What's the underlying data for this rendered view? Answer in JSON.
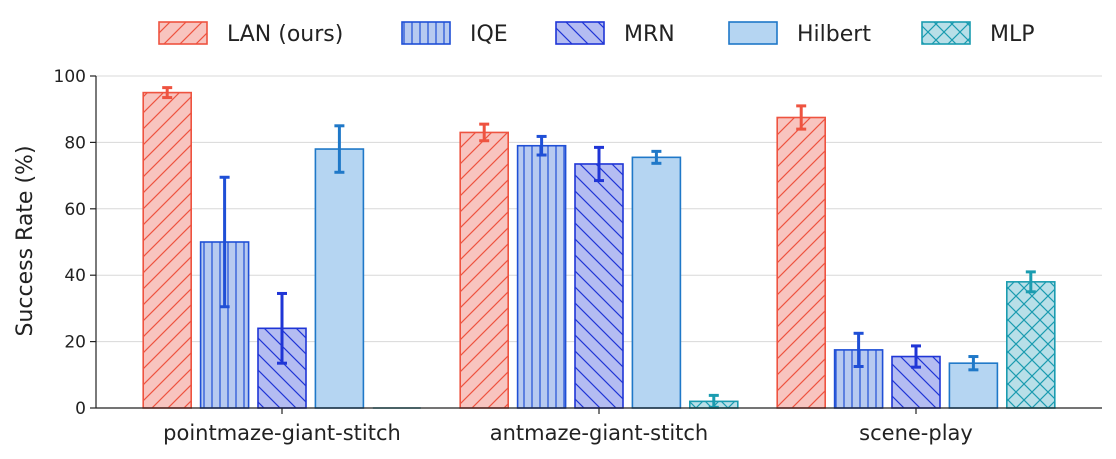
{
  "chart_data": {
    "type": "bar",
    "ylabel": "Success Rate (%)",
    "ylim": [
      0,
      100
    ],
    "yticks": [
      0,
      20,
      40,
      60,
      80,
      100
    ],
    "grid": "horizontal",
    "legend_position": "top",
    "categories": [
      "pointmaze-giant-stitch",
      "antmaze-giant-stitch",
      "scene-play"
    ],
    "series": [
      {
        "name": "LAN (ours)",
        "values": [
          95,
          83,
          87.5
        ],
        "errors": [
          1.5,
          2.5,
          3.5
        ],
        "fill": "#f8c4bf",
        "stroke": "#ee5340",
        "hatch": "diag-up"
      },
      {
        "name": "IQE",
        "values": [
          50,
          79,
          17.5
        ],
        "errors": [
          19.5,
          2.8,
          5
        ],
        "fill": "#b7caf0",
        "stroke": "#1f4fd6",
        "hatch": "vertical"
      },
      {
        "name": "MRN",
        "values": [
          24,
          73.5,
          15.5
        ],
        "errors": [
          10.5,
          5,
          3.2
        ],
        "fill": "#b4bcf2",
        "stroke": "#1f35d6",
        "hatch": "diag-down"
      },
      {
        "name": "Hilbert",
        "values": [
          78,
          75.5,
          13.5
        ],
        "errors": [
          7,
          1.8,
          2
        ],
        "fill": "#b5d5f2",
        "stroke": "#1f78c8",
        "hatch": "none"
      },
      {
        "name": "MLP",
        "values": [
          0,
          2,
          38
        ],
        "errors": [
          0,
          1.8,
          3
        ],
        "fill": "#b8dfe8",
        "stroke": "#1b9cb0",
        "hatch": "cross"
      }
    ]
  }
}
